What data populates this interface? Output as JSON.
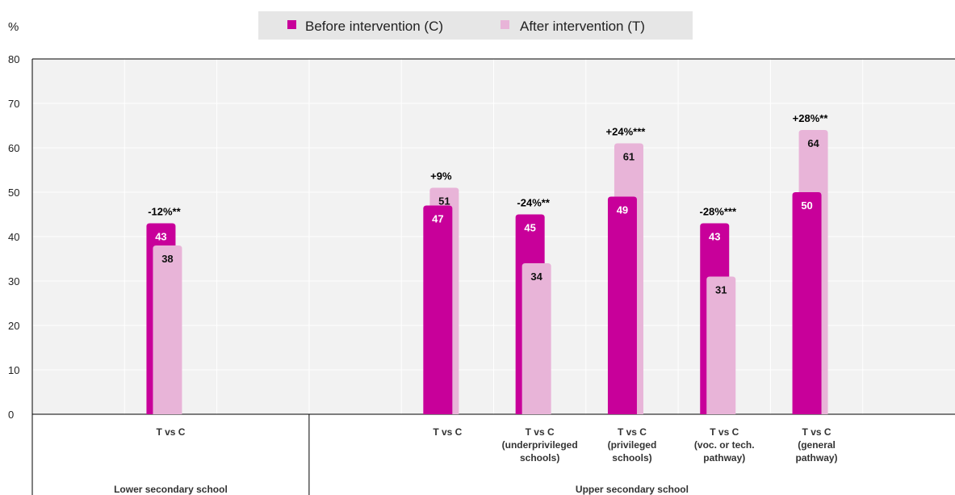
{
  "chart_data": {
    "type": "bar",
    "ylabel": "%",
    "ylim": [
      0,
      80
    ],
    "yticks": [
      0,
      10,
      20,
      30,
      40,
      50,
      60,
      70,
      80
    ],
    "grid": true,
    "legend_position": "top-center",
    "colors": {
      "before": "#c8009a",
      "after": "#e8b4d8"
    },
    "series": [
      {
        "name": "Before intervention (C)",
        "key": "before"
      },
      {
        "name": "After intervention (T)",
        "key": "after"
      }
    ],
    "groups": [
      {
        "label": "Lower secondary school"
      },
      {
        "label": "Upper secondary school"
      }
    ],
    "categories": [
      {
        "group": 0,
        "label": [
          "T vs C"
        ],
        "before": 43,
        "after": 38,
        "annotation": "-12%**"
      },
      {
        "group": 1,
        "label": [
          "T vs C"
        ],
        "before": 47,
        "after": 51,
        "annotation": "+9%"
      },
      {
        "group": 1,
        "label": [
          "T vs C",
          "(underprivileged",
          "schools)"
        ],
        "before": 45,
        "after": 34,
        "annotation": "-24%**"
      },
      {
        "group": 1,
        "label": [
          "T vs C",
          "(privileged",
          "schools)"
        ],
        "before": 49,
        "after": 61,
        "annotation": "+24%***"
      },
      {
        "group": 1,
        "label": [
          "T vs C",
          "(voc. or tech.",
          "pathway)"
        ],
        "before": 43,
        "after": 31,
        "annotation": "-28%***"
      },
      {
        "group": 1,
        "label": [
          "T vs C",
          "(general",
          "pathway)"
        ],
        "before": 50,
        "after": 64,
        "annotation": "+28%**"
      }
    ]
  }
}
